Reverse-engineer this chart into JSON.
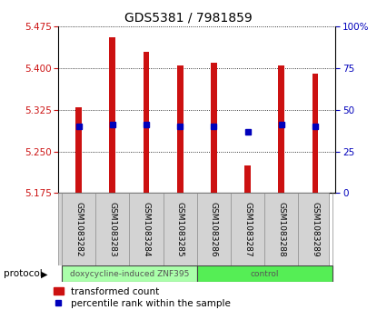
{
  "title": "GDS5381 / 7981859",
  "samples": [
    "GSM1083282",
    "GSM1083283",
    "GSM1083284",
    "GSM1083285",
    "GSM1083286",
    "GSM1083287",
    "GSM1083288",
    "GSM1083289"
  ],
  "bar_bottoms": [
    5.175,
    5.175,
    5.175,
    5.175,
    5.175,
    5.175,
    5.175,
    5.175
  ],
  "bar_tops": [
    5.33,
    5.455,
    5.43,
    5.405,
    5.41,
    5.225,
    5.405,
    5.39
  ],
  "percentile_y": [
    5.295,
    5.298,
    5.298,
    5.295,
    5.295,
    5.285,
    5.298,
    5.295
  ],
  "ylim": [
    5.175,
    5.475
  ],
  "yticks_left": [
    5.175,
    5.25,
    5.325,
    5.4,
    5.475
  ],
  "yticks_right_vals": [
    "0",
    "25",
    "50",
    "75",
    "100%"
  ],
  "yticks_right_pos": [
    5.175,
    5.25,
    5.325,
    5.4,
    5.475
  ],
  "bar_color": "#cc1111",
  "dot_color": "#0000bb",
  "protocol_groups": [
    {
      "label": "doxycycline-induced ZNF395",
      "start": 0,
      "end": 4,
      "color": "#aaffaa"
    },
    {
      "label": "control",
      "start": 4,
      "end": 8,
      "color": "#55ee55"
    }
  ],
  "legend_red_label": "transformed count",
  "legend_blue_label": "percentile rank within the sample",
  "protocol_label": "protocol",
  "bg_plot": "#ffffff",
  "bg_label": "#d3d3d3",
  "bar_width": 0.18
}
